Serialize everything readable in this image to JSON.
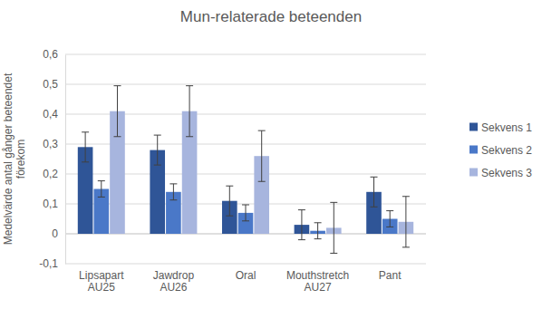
{
  "chart_data": {
    "type": "bar",
    "title": "Mun-relaterade beteenden",
    "y_label": "Medelvärde antal gånger beteendet förekom",
    "categories": [
      "Lipsapart AU25",
      "Jawdrop AU26",
      "Oral",
      "Mouthstretch AU27",
      "Pant"
    ],
    "series": [
      {
        "name": "Sekvens 1",
        "color": "#2f5597",
        "values": [
          0.29,
          0.28,
          0.11,
          0.03,
          0.14
        ],
        "errors": [
          0.05,
          0.05,
          0.05,
          0.05,
          0.05
        ]
      },
      {
        "name": "Sekvens 2",
        "color": "#4a78c8",
        "values": [
          0.15,
          0.14,
          0.07,
          0.01,
          0.05
        ],
        "errors": [
          0.027,
          0.027,
          0.027,
          0.027,
          0.027
        ]
      },
      {
        "name": "Sekvens 3",
        "color": "#a7b5de",
        "values": [
          0.41,
          0.41,
          0.26,
          0.02,
          0.04
        ],
        "errors": [
          0.085,
          0.085,
          0.085,
          0.085,
          0.085
        ]
      }
    ],
    "ylim": [
      -0.1,
      0.6
    ],
    "yticks": [
      {
        "value": -0.1,
        "label": "-0,1"
      },
      0,
      {
        "value": 0.1,
        "label": "0,1"
      },
      {
        "value": 0.2,
        "label": "0,2"
      },
      {
        "value": 0.3,
        "label": "0,3"
      },
      {
        "value": 0.4,
        "label": "0,4"
      },
      {
        "value": 0.5,
        "label": "0,5"
      },
      {
        "value": 0.6,
        "label": "0,6"
      }
    ],
    "grid": true,
    "legend": "right"
  }
}
